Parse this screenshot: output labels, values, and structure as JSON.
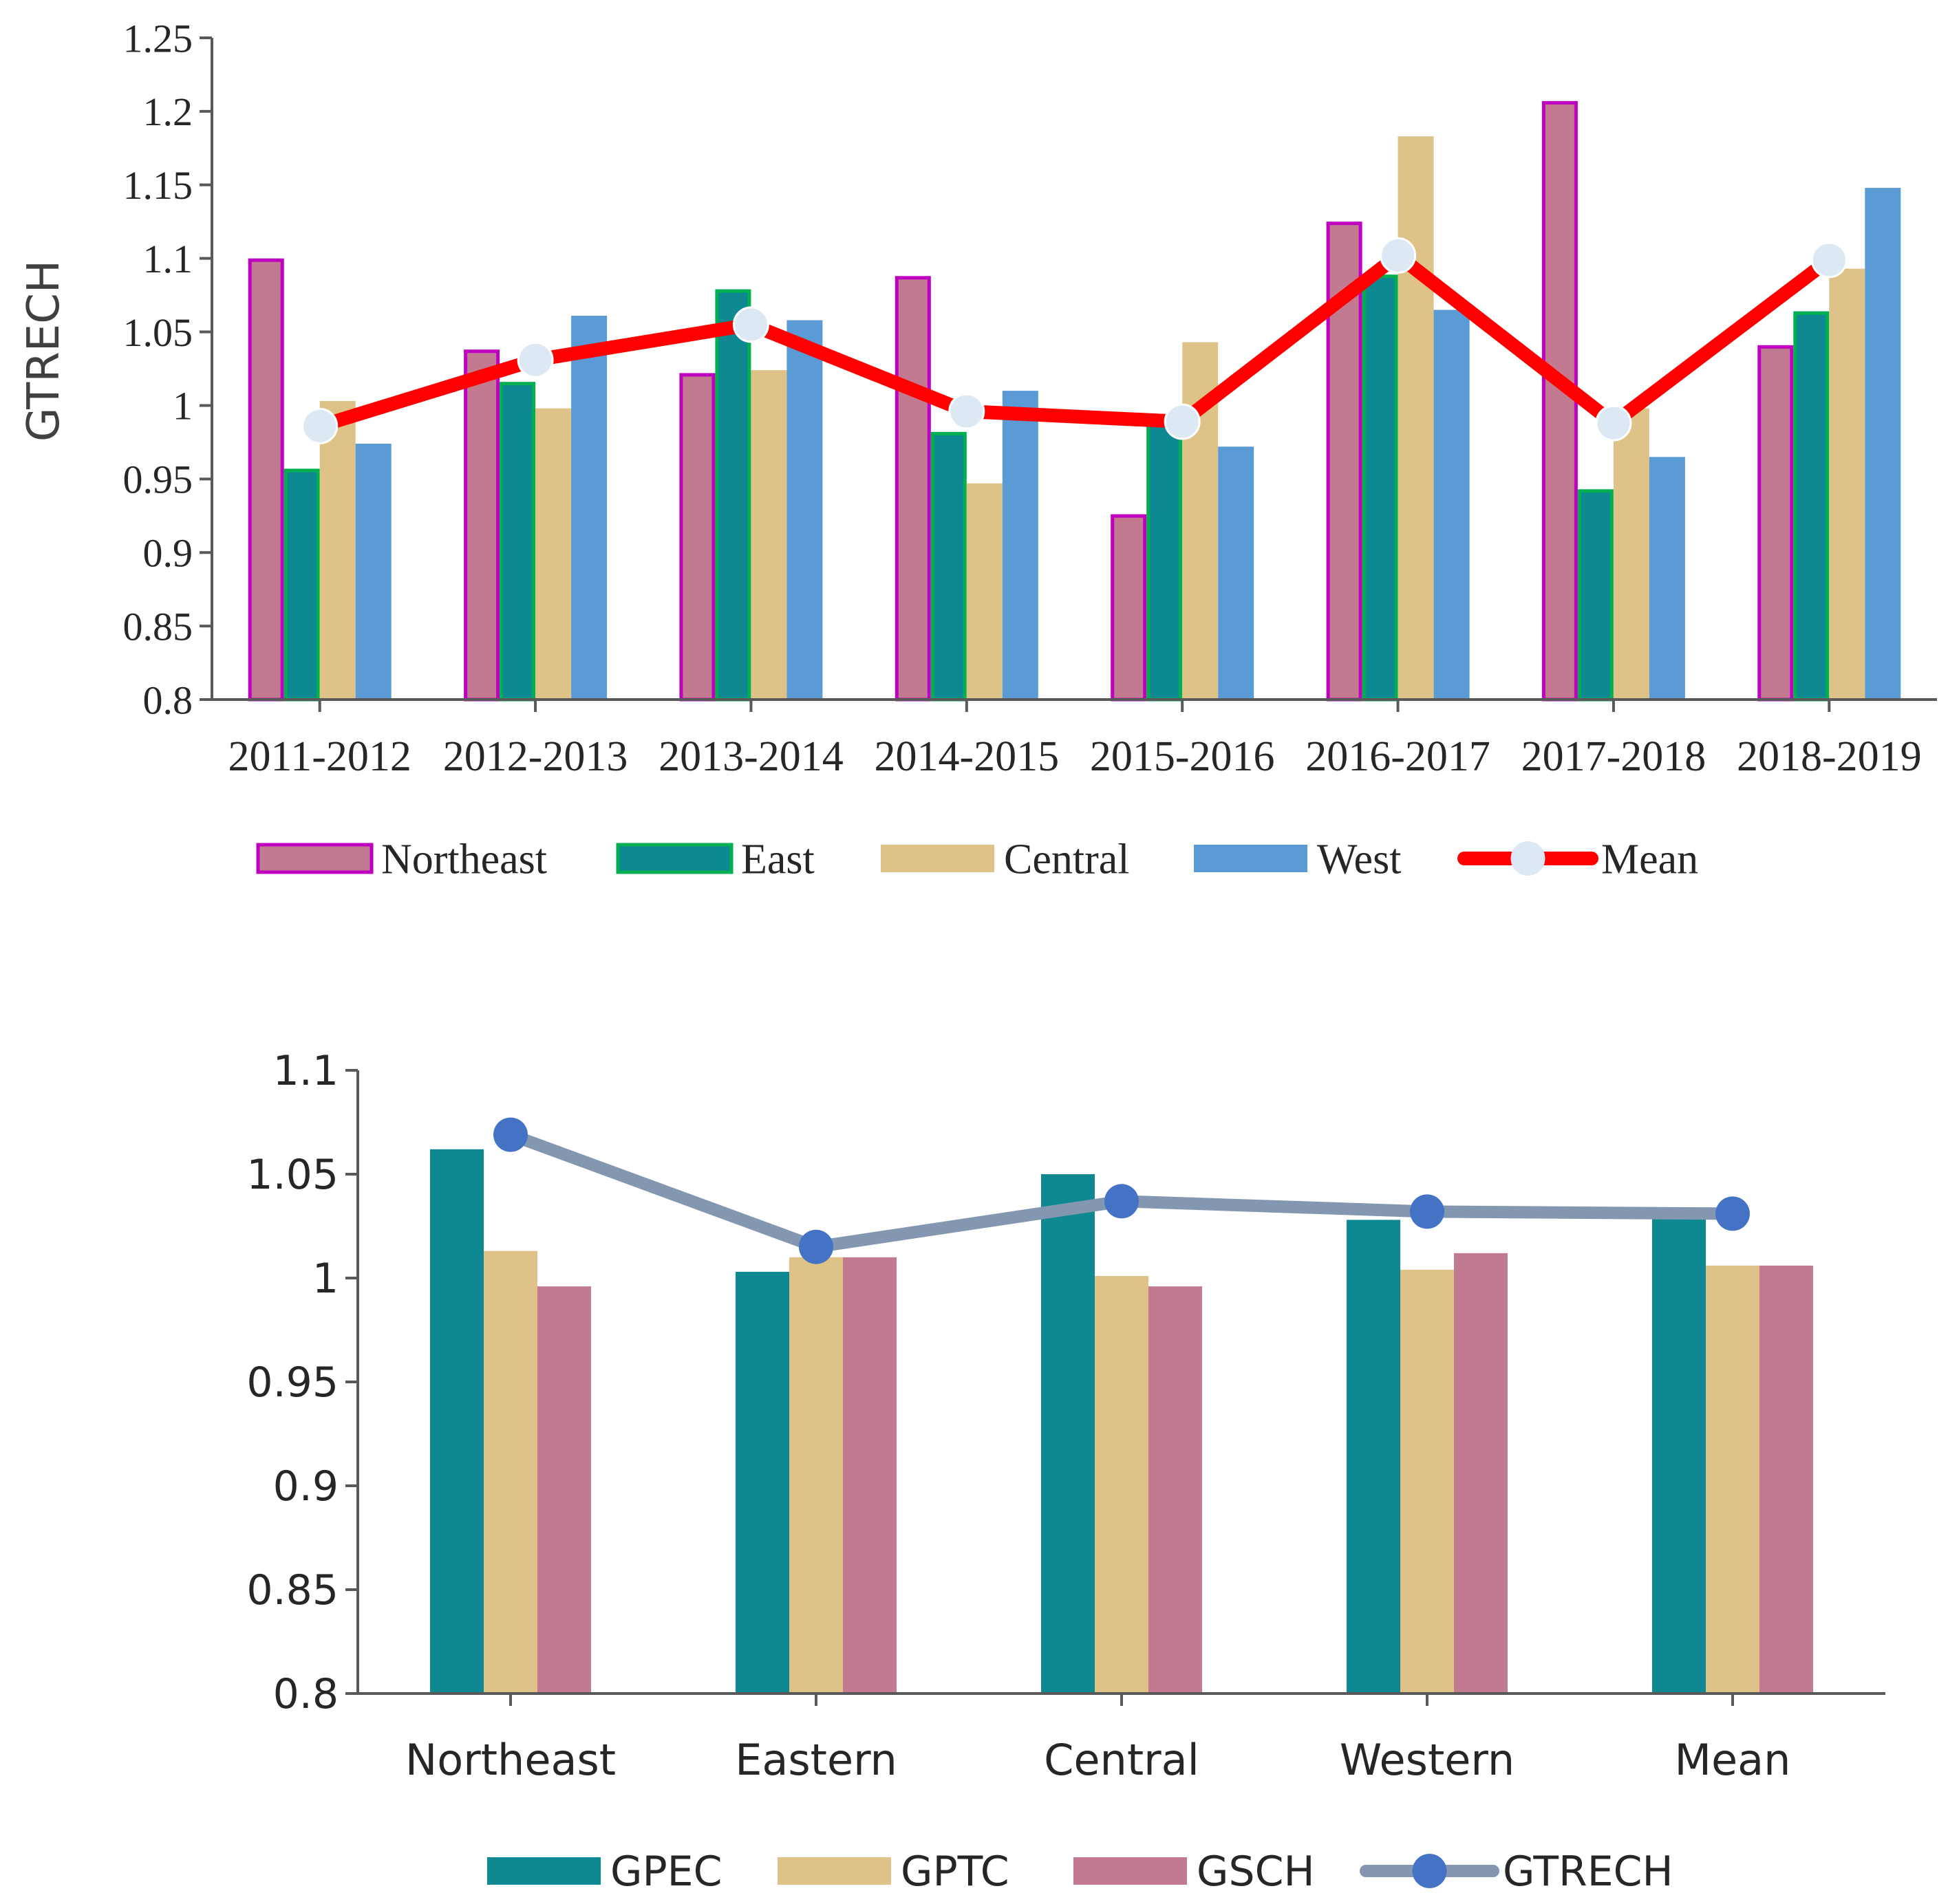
{
  "chart_data": [
    {
      "type": "bar",
      "title": "",
      "xlabel": "",
      "ylabel": "GTRECH",
      "ylim": [
        0.8,
        1.25
      ],
      "yticks": [
        "0.8",
        "0.85",
        "0.9",
        "0.95",
        "1",
        "1.05",
        "1.1",
        "1.15",
        "1.2",
        "1.25"
      ],
      "grid": false,
      "legend_position": "bottom",
      "categories": [
        "2011-2012",
        "2012-2013",
        "2013-2014",
        "2014-2015",
        "2015-2016",
        "2016-2017",
        "2017-2018",
        "2018-2019"
      ],
      "series": [
        {
          "name": "Northeast",
          "kind": "bar",
          "color": "#c27a91",
          "border": "#c000c0",
          "values": [
            1.1,
            1.038,
            1.022,
            1.088,
            0.926,
            1.125,
            1.207,
            1.041
          ]
        },
        {
          "name": "East",
          "kind": "bar",
          "color": "#0e8891",
          "border": "#00b050",
          "values": [
            0.957,
            1.016,
            1.079,
            0.982,
            0.994,
            1.089,
            0.943,
            1.064
          ]
        },
        {
          "name": "Central",
          "kind": "bar",
          "color": "#dfc287",
          "border": "",
          "values": [
            1.003,
            0.998,
            1.024,
            0.947,
            1.043,
            1.183,
            0.998,
            1.093
          ]
        },
        {
          "name": "West",
          "kind": "bar",
          "color": "#5b9bd5",
          "border": "",
          "values": [
            0.974,
            1.061,
            1.058,
            1.01,
            0.972,
            1.065,
            0.965,
            1.148
          ]
        },
        {
          "name": "Mean",
          "kind": "line",
          "color": "#ff0000",
          "marker": "#dde8f5",
          "values": [
            0.986,
            1.031,
            1.055,
            0.996,
            0.989,
            1.102,
            0.988,
            1.099
          ]
        }
      ]
    },
    {
      "type": "bar",
      "title": "",
      "xlabel": "",
      "ylabel": "",
      "ylim": [
        0.8,
        1.1
      ],
      "yticks": [
        "0.8",
        "0.85",
        "0.9",
        "0.95",
        "1",
        "1.05",
        "1.1"
      ],
      "grid": false,
      "legend_position": "bottom",
      "categories": [
        "Northeast",
        "Eastern",
        "Central",
        "Western",
        "Mean"
      ],
      "series": [
        {
          "name": "GPEC",
          "kind": "bar",
          "color": "#0e8891",
          "values": [
            1.062,
            1.003,
            1.05,
            1.028,
            1.031
          ]
        },
        {
          "name": "GPTC",
          "kind": "bar",
          "color": "#dfc287",
          "values": [
            1.013,
            1.01,
            1.001,
            1.004,
            1.006
          ]
        },
        {
          "name": "GSCH",
          "kind": "bar",
          "color": "#c27a91",
          "values": [
            0.996,
            1.01,
            0.996,
            1.012,
            1.006
          ]
        },
        {
          "name": "GTRECH",
          "kind": "line",
          "color": "#8497b0",
          "marker": "#4472c4",
          "values": [
            1.069,
            1.015,
            1.037,
            1.032,
            1.031
          ]
        }
      ]
    }
  ]
}
